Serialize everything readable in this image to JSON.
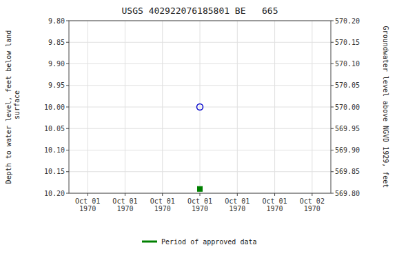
{
  "chart_data": {
    "type": "scatter",
    "title": "USGS 402922076185801 BE   665",
    "y_label": "Depth to water level, feet below land\n surface",
    "y2_label": "Groundwater level above NGVD 1929, feet",
    "categories": [
      "Oct 01\n1970",
      "Oct 01\n1970",
      "Oct 01\n1970",
      "Oct 01\n1970",
      "Oct 01\n1970",
      "Oct 01\n1970",
      "Oct 02\n1970"
    ],
    "series": [
      {
        "color": "#0000cc",
        "marker": "open_circle",
        "values": [
          null,
          null,
          null,
          10,
          null,
          null,
          null
        ]
      },
      {
        "name": "Period of approved data",
        "color": "#008000",
        "marker": "square",
        "values": [
          null,
          null,
          null,
          10.19,
          null,
          null,
          null
        ]
      }
    ],
    "ylim": [
      10.2,
      9.8
    ],
    "yticks": [
      {
        "value": 9.8,
        "label": "9.80"
      },
      9.85,
      {
        "value": 9.9,
        "label": "9.90"
      },
      9.95,
      {
        "value": 10,
        "label": "10.00"
      },
      10.05,
      {
        "value": 10.1,
        "label": "10.10"
      },
      10.15,
      {
        "value": 10.2,
        "label": "10.20"
      }
    ],
    "y2lim": [
      569.8,
      570.2
    ],
    "y2ticks": [
      {
        "value": 570.2,
        "label": "570.20"
      },
      570.15,
      {
        "value": 570.1,
        "label": "570.10"
      },
      570.05,
      {
        "value": 570,
        "label": "570.00"
      },
      569.95,
      {
        "value": 569.9,
        "label": "569.90"
      },
      569.85,
      {
        "value": 569.8,
        "label": "569.80"
      }
    ],
    "grid": true,
    "legend": "bottom"
  }
}
